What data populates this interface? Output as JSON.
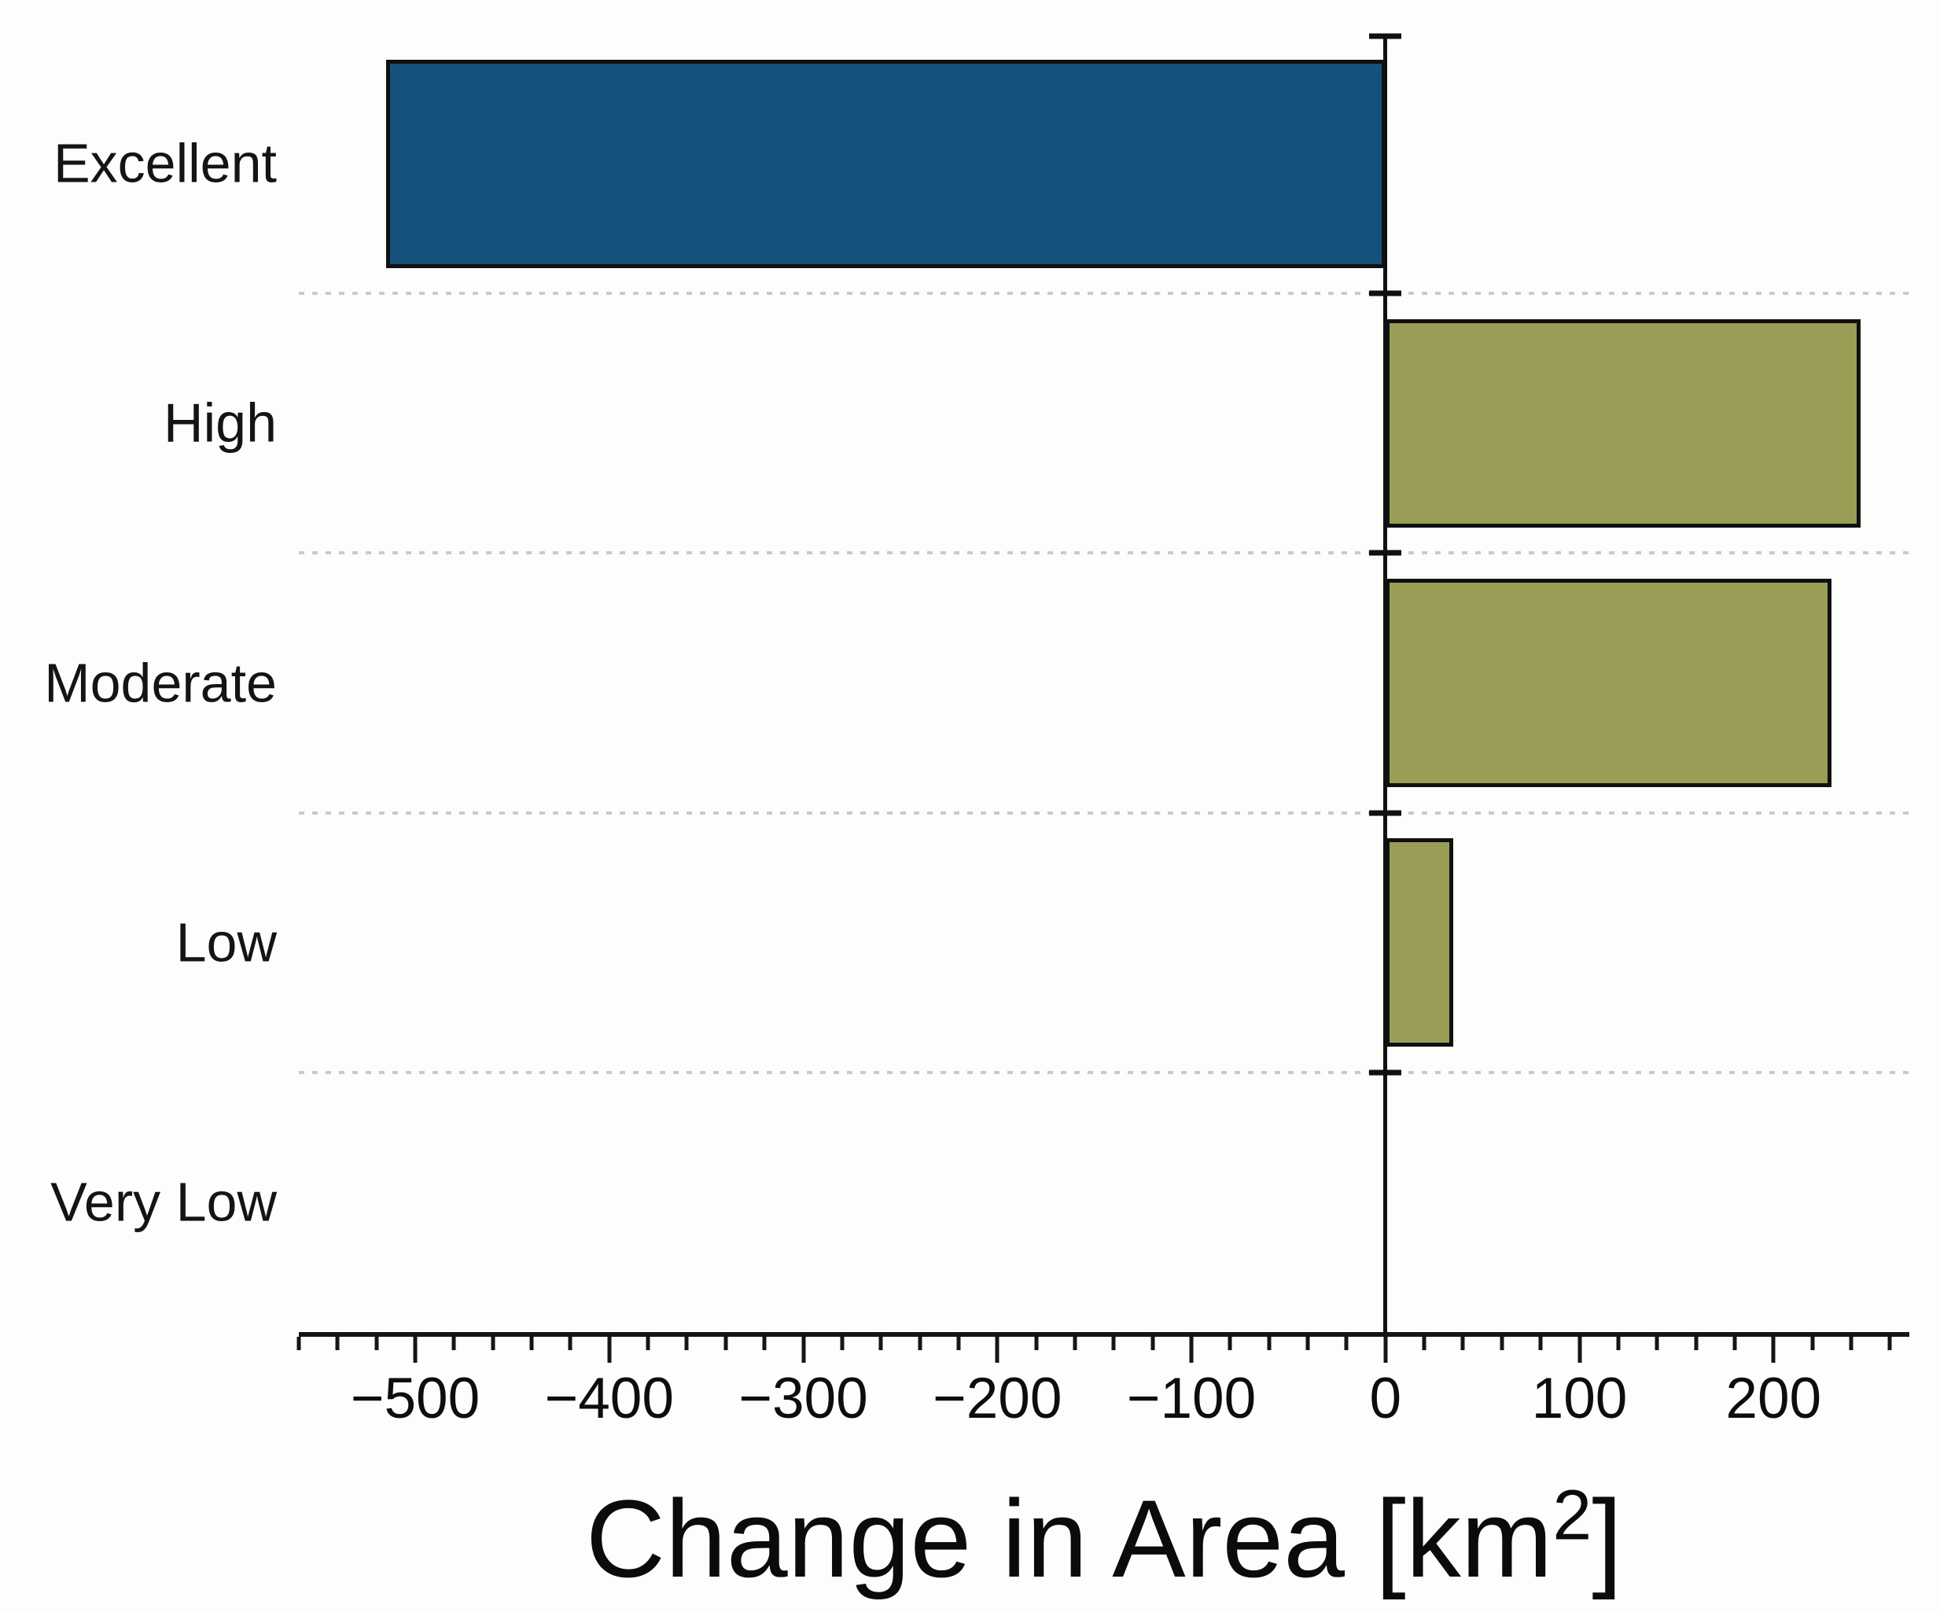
{
  "page": {
    "background": "#fdfdfc"
  },
  "chart_data": {
    "type": "bar",
    "orientation": "horizontal",
    "title": "",
    "xlabel_text": "Change in Area [km²]",
    "xlabel_prefix": "Change in Area [km",
    "xlabel_sup": "2",
    "xlabel_suffix": "]",
    "categories": [
      "Excellent",
      "High",
      "Moderate",
      "Low",
      "Very Low"
    ],
    "values": [
      -515,
      245,
      230,
      35,
      0
    ],
    "bar_colors": [
      "#15517b",
      "#9a9d55",
      "#9a9d55",
      "#9a9d55",
      "#9a9d55"
    ],
    "bar_border_color": "#101010",
    "xlim": [
      -560,
      270
    ],
    "x_major_ticks": [
      {
        "value": -500,
        "label": "−500"
      },
      {
        "value": -400,
        "label": "−400"
      },
      {
        "value": -300,
        "label": "−300"
      },
      {
        "value": -200,
        "label": "−200"
      },
      {
        "value": -100,
        "label": "−100"
      },
      {
        "value": 0,
        "label": "0"
      },
      {
        "value": 100,
        "label": "100"
      },
      {
        "value": 200,
        "label": "200"
      }
    ],
    "x_minor_tick_step": 20,
    "grid": {
      "orientation": "horizontal",
      "style": "dotted",
      "color": "#c6cbd0",
      "position": "category-boundaries"
    },
    "axis_color": "#151515",
    "zero_line": true,
    "legend": "none"
  }
}
